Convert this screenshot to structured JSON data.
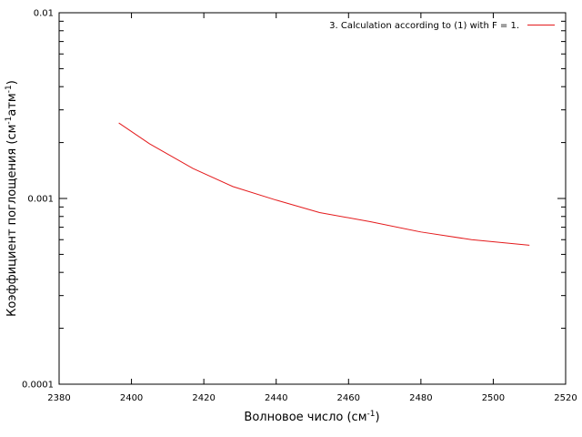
{
  "chart_data": {
    "type": "line",
    "xlabel": "Волновое число (см",
    "xlabel_sup": "-1",
    "xlabel_end": ")",
    "ylabel": "Коэффициент поглощения (см",
    "ylabel_sup1": "-1",
    "ylabel_mid": "атм",
    "ylabel_sup2": "-1",
    "ylabel_end": ")",
    "xlim": [
      2380,
      2520
    ],
    "ylim": [
      0.0001,
      0.01
    ],
    "yscale": "log",
    "grid": false,
    "legend_position": "top-right",
    "x_ticks": [
      2380,
      2400,
      2420,
      2440,
      2460,
      2480,
      2500,
      2520
    ],
    "x_tick_labels": [
      "2380",
      "2400",
      "2420",
      "2440",
      "2460",
      "2480",
      "2500",
      "2520"
    ],
    "y_ticks": [
      0.0001,
      0.001,
      0.01
    ],
    "y_tick_labels": [
      "0.0001",
      "0.001",
      "0.01"
    ],
    "series": [
      {
        "name": "3. Calculation according to (1) with F = 1.",
        "color": "#e41a1c",
        "x": [
          2396.5,
          2405,
          2417,
          2428,
          2440,
          2452,
          2466,
          2480,
          2494,
          2510
        ],
        "y": [
          0.00255,
          0.00197,
          0.00145,
          0.00116,
          0.00098,
          0.00084,
          0.00075,
          0.00066,
          0.0006,
          0.00056
        ]
      }
    ]
  }
}
